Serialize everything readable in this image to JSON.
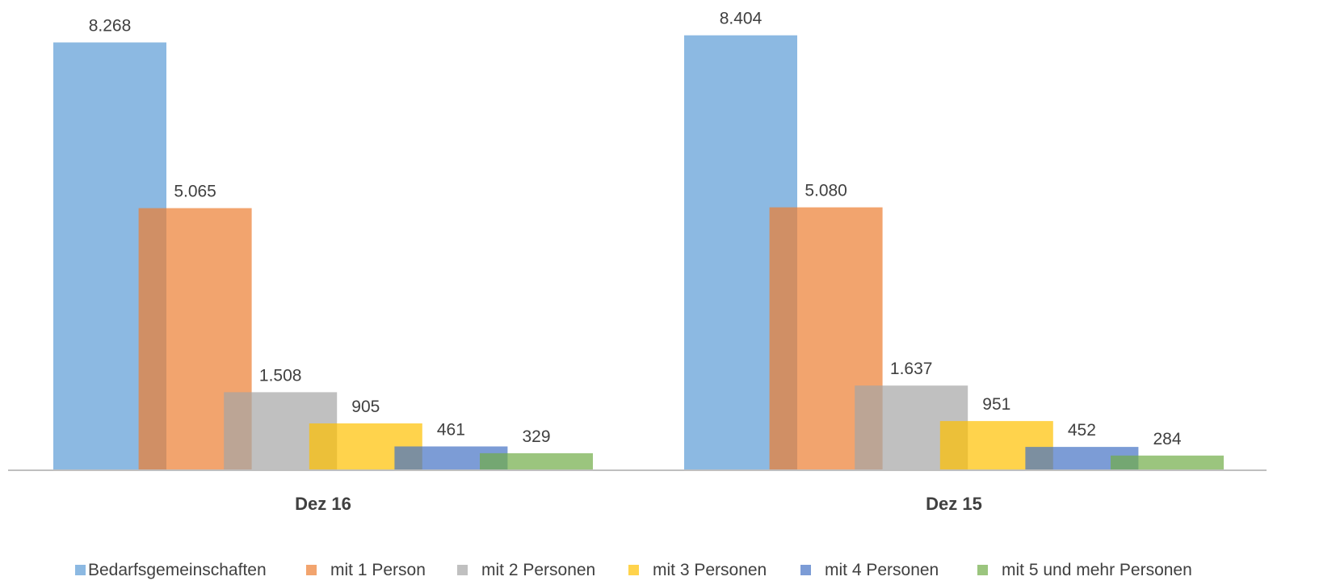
{
  "chart_data": {
    "type": "bar",
    "categories": [
      "Dez 16",
      "Dez 15"
    ],
    "series": [
      {
        "name": "Bedarfsgemeinschaften",
        "values": [
          8268,
          8404
        ],
        "labels": [
          "8.268",
          "8.404"
        ],
        "color": "#5B9BD5"
      },
      {
        "name": "mit 1 Person",
        "values": [
          5065,
          5080
        ],
        "labels": [
          "5.065",
          "5.080"
        ],
        "color": "#ED7D31"
      },
      {
        "name": "mit 2 Personen",
        "values": [
          1508,
          1637
        ],
        "labels": [
          "1.508",
          "1.637"
        ],
        "color": "#A5A5A5"
      },
      {
        "name": "mit 3 Personen",
        "values": [
          905,
          951
        ],
        "labels": [
          "905",
          "951"
        ],
        "color": "#FFC000"
      },
      {
        "name": "mit 4 Personen",
        "values": [
          461,
          452
        ],
        "labels": [
          "461",
          "452"
        ],
        "color": "#4472C4"
      },
      {
        "name": "mit 5 und mehr Personen",
        "values": [
          329,
          284
        ],
        "labels": [
          "329",
          "284"
        ],
        "color": "#70AD47"
      }
    ],
    "ylim": [
      0,
      8400
    ],
    "grid": false,
    "legend": "bottom",
    "bar_overlap": true,
    "bar_opacity": 0.7
  }
}
